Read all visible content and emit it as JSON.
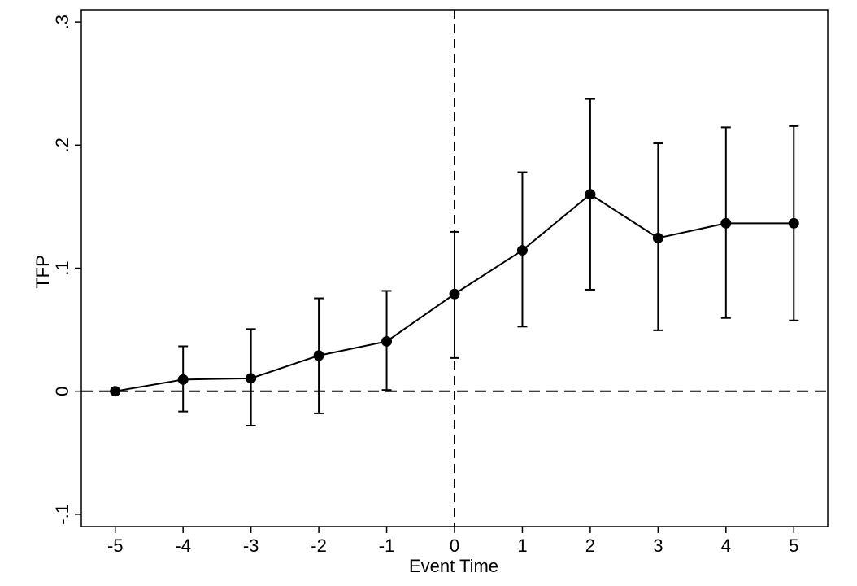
{
  "chart_data": {
    "type": "line",
    "title": "",
    "xlabel": "Event Time",
    "ylabel": "TFP",
    "xlim": [
      -5.5,
      5.5
    ],
    "ylim": [
      -0.11,
      0.31
    ],
    "x_ticks": [
      -5,
      -4,
      -3,
      -2,
      -1,
      0,
      1,
      2,
      3,
      4,
      5
    ],
    "x_tick_labels": [
      "-5",
      "-4",
      "-3",
      "-2",
      "-1",
      "0",
      "1",
      "2",
      "3",
      "4",
      "5"
    ],
    "y_ticks": [
      -0.1,
      0,
      0.1,
      0.2,
      0.3
    ],
    "y_tick_labels": [
      "-.1",
      "0",
      ".1",
      ".2",
      ".3"
    ],
    "reference_lines": {
      "x": 0,
      "y": 0,
      "style": "dashed"
    },
    "grid": false,
    "legend": "none",
    "series": [
      {
        "name": "TFP",
        "x": [
          -5,
          -4,
          -3,
          -2,
          -1,
          0,
          1,
          2,
          3,
          4,
          5
        ],
        "values": [
          0.0,
          0.0095,
          0.0105,
          0.029,
          0.0405,
          0.079,
          0.1145,
          0.16,
          0.1245,
          0.1365,
          0.1365
        ],
        "ci_lower": [
          0.0,
          -0.0165,
          -0.028,
          -0.018,
          0.001,
          0.027,
          0.0525,
          0.0825,
          0.0495,
          0.0595,
          0.0575
        ],
        "ci_upper": [
          0.0,
          0.0365,
          0.0505,
          0.0755,
          0.0815,
          0.1295,
          0.178,
          0.2375,
          0.2015,
          0.2145,
          0.2155
        ]
      }
    ],
    "colors": {
      "line": "#000000",
      "marker": "#000000",
      "axis": "#000000",
      "background": "#ffffff"
    }
  }
}
